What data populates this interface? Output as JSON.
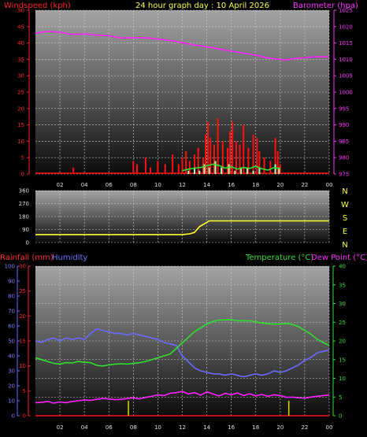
{
  "header": {
    "left_title": "Windspeed (kph)",
    "center_title": "24 hour graph day : 10 April 2026",
    "right_title": "Barometer (hpa)"
  },
  "bottom_header": {
    "rainfall": "Rainfall (mm)",
    "humidity": "Humidity",
    "temperature": "Temperature (°C)",
    "dew_point": "Dew Point (°C)"
  },
  "colors": {
    "red": "#ff1010",
    "magenta": "#ff20ff",
    "yellow": "#ffff30",
    "green": "#30e030",
    "blue": "#6a6aff",
    "lightgreen": "#b0ffb0"
  },
  "chart_data": [
    {
      "type": "line",
      "name": "wind_baro",
      "x_ticks": [
        "02",
        "04",
        "06",
        "08",
        "10",
        "12",
        "14",
        "16",
        "18",
        "20",
        "22",
        "00"
      ],
      "left_axis": {
        "title": "Windspeed (kph)",
        "ylim": [
          0,
          50
        ],
        "ticks": [
          0,
          5,
          10,
          15,
          20,
          25,
          30,
          35,
          40,
          45,
          50
        ]
      },
      "right_axis": {
        "title": "Barometer (hpa)",
        "ylim": [
          975,
          1025
        ],
        "ticks": [
          975,
          980,
          985,
          990,
          995,
          1000,
          1005,
          1010,
          1015,
          1020,
          1025
        ]
      },
      "series": [
        {
          "axis": "right",
          "color": "#ff20ff",
          "x": [
            0,
            1,
            2,
            3,
            4,
            5,
            6,
            7,
            8,
            9,
            10,
            11,
            12,
            13,
            14,
            15,
            16,
            17,
            18,
            19,
            20,
            20.5,
            21,
            22,
            23,
            24
          ],
          "y": [
            1018,
            1018.5,
            1018.3,
            1017.6,
            1017.8,
            1017.4,
            1017.2,
            1016.5,
            1016.6,
            1016.6,
            1016.2,
            1015.8,
            1015.1,
            1014.4,
            1013.8,
            1013.2,
            1012.5,
            1011.9,
            1011.3,
            1010.4,
            1010,
            1009.8,
            1010.2,
            1010.5,
            1010.8,
            1010.8
          ]
        },
        {
          "axis": "left",
          "color": "#ff1010",
          "style": "bars",
          "x": [
            3.1,
            8,
            8.3,
            9,
            9.4,
            10,
            10.6,
            11.2,
            11.7,
            12,
            12.3,
            12.6,
            13,
            13.3,
            13.7,
            13.9,
            14.1,
            14.3,
            14.6,
            14.9,
            15.3,
            15.7,
            15.9,
            16.1,
            16.4,
            16.7,
            17,
            17.4,
            17.8,
            18.1,
            18.3,
            18.7,
            19.2,
            19.6,
            19.8,
            20
          ],
          "y": [
            2,
            4,
            3,
            5,
            2,
            4,
            3,
            6,
            3,
            5,
            7,
            4,
            6,
            8,
            5,
            12,
            16,
            11,
            9,
            17,
            10,
            8,
            13,
            16,
            10,
            9,
            15,
            8,
            12,
            11,
            7,
            5,
            4,
            11,
            7,
            3
          ]
        },
        {
          "axis": "left",
          "color": "#b0ffb0",
          "style": "bars",
          "x": [
            12.5,
            13,
            13.4,
            13.8,
            14.2,
            14.7,
            15.2,
            15.8,
            16.3,
            16.8,
            17.3,
            17.8,
            18.3,
            19.6,
            19.9
          ],
          "y": [
            1,
            2,
            1,
            3,
            2,
            4,
            2,
            3,
            1,
            2,
            2,
            1,
            2,
            3,
            2
          ]
        },
        {
          "axis": "left",
          "color": "#30e030",
          "x": [
            12,
            12.5,
            13,
            13.5,
            14,
            14.5,
            15,
            15.5,
            16,
            16.5,
            17,
            17.5,
            18,
            18.5,
            19,
            19.5,
            20
          ],
          "y": [
            1,
            1.5,
            1.8,
            2,
            2.5,
            3,
            2.6,
            1.8,
            2.2,
            1.5,
            2,
            1.7,
            2.4,
            1.6,
            1.2,
            2,
            1.6
          ]
        }
      ]
    },
    {
      "type": "line",
      "name": "wind_direction",
      "x_ticks": [
        "02",
        "04",
        "06",
        "08",
        "10",
        "12",
        "14",
        "16",
        "18",
        "20",
        "22",
        "00"
      ],
      "left_axis": {
        "ylim": [
          0,
          360
        ],
        "ticks": [
          0,
          90,
          180,
          270,
          360
        ]
      },
      "right_labels": [
        "N",
        "W",
        "S",
        "E",
        "N"
      ],
      "series": [
        {
          "color": "#ffff30",
          "x": [
            0,
            1,
            2,
            3,
            4,
            5,
            6,
            7,
            8,
            9,
            10,
            11,
            12,
            12.6,
            13,
            13.4,
            13.8,
            14.2,
            15,
            16,
            17,
            18,
            19,
            20,
            21,
            22,
            23,
            24
          ],
          "y": [
            55,
            55,
            55,
            55,
            55,
            55,
            55,
            55,
            55,
            55,
            55,
            55,
            55,
            60,
            70,
            110,
            130,
            150,
            150,
            150,
            150,
            150,
            150,
            150,
            150,
            150,
            150,
            150
          ]
        }
      ]
    },
    {
      "type": "line",
      "name": "temp_hum_rain",
      "x_ticks": [
        "02",
        "04",
        "06",
        "08",
        "10",
        "12",
        "14",
        "16",
        "18",
        "20",
        "22",
        "00"
      ],
      "rain_axis": {
        "title": "Rainfall (mm)",
        "ylim": [
          0,
          30
        ],
        "ticks": [
          0,
          5,
          10,
          15,
          20,
          25,
          30
        ]
      },
      "humidity_axis": {
        "title": "Humidity",
        "ylim": [
          0,
          100
        ],
        "ticks": [
          0,
          10,
          20,
          30,
          40,
          50,
          60,
          70,
          80,
          90,
          100
        ]
      },
      "temp_axis": {
        "title": "Temperature (°C)",
        "ylim": [
          0,
          40
        ],
        "ticks": [
          0,
          5,
          10,
          15,
          20,
          25,
          30,
          35,
          40
        ]
      },
      "series": [
        {
          "name": "Humidity",
          "color": "#6a6aff",
          "x": [
            0,
            0.5,
            1,
            1.5,
            2,
            2.5,
            3,
            3.5,
            4,
            4.5,
            5,
            5.5,
            6,
            6.5,
            7,
            7.5,
            8,
            8.5,
            9,
            9.5,
            10,
            10.5,
            11,
            11.5,
            12,
            12.5,
            13,
            13.5,
            14,
            14.5,
            15,
            15.5,
            16,
            16.5,
            17,
            17.5,
            18,
            18.5,
            19,
            19.5,
            20,
            20.5,
            21,
            21.5,
            22,
            22.5,
            23,
            23.5,
            24
          ],
          "y": [
            50,
            49,
            51,
            52,
            50,
            52,
            51,
            52,
            51,
            55,
            58,
            57,
            56,
            55,
            55,
            54,
            55,
            54,
            53,
            52,
            51,
            49,
            48,
            47,
            40,
            36,
            32,
            30,
            29,
            28,
            28,
            27,
            28,
            27,
            26,
            27,
            28,
            27,
            28,
            30,
            29,
            30,
            32,
            34,
            37,
            39,
            42,
            43,
            44
          ]
        },
        {
          "name": "Temperature (°C)",
          "color": "#30e030",
          "x": [
            0,
            0.5,
            1,
            1.5,
            2,
            2.5,
            3,
            3.5,
            4,
            4.5,
            5,
            5.5,
            6,
            6.5,
            7,
            7.5,
            8,
            8.5,
            9,
            9.5,
            10,
            10.5,
            11,
            11.5,
            12,
            12.5,
            13,
            13.5,
            14,
            14.5,
            15,
            15.5,
            16,
            16.5,
            17,
            17.5,
            18,
            18.5,
            19,
            19.5,
            20,
            20.5,
            21,
            21.5,
            22,
            22.5,
            23,
            23.5,
            24
          ],
          "y": [
            15.5,
            15,
            14.5,
            14,
            13.8,
            14.2,
            14.1,
            14.5,
            14.3,
            14.2,
            13.5,
            13.3,
            13.6,
            13.8,
            13.9,
            13.8,
            14,
            14.2,
            14.5,
            15,
            15.5,
            16,
            16.5,
            18,
            19.5,
            21,
            22.5,
            23.5,
            24.5,
            25.2,
            25.6,
            25.6,
            25.7,
            25.4,
            25.4,
            25.4,
            25.1,
            24.8,
            24.6,
            24.5,
            24.5,
            24.7,
            24.4,
            23.8,
            22.8,
            21.8,
            20.5,
            19.6,
            18.8
          ]
        },
        {
          "name": "Dew Point (°C)",
          "color": "#ff20ff",
          "x": [
            0,
            0.5,
            1,
            1.5,
            2,
            2.5,
            3,
            3.5,
            4,
            4.5,
            5,
            5.5,
            6,
            6.5,
            7,
            7.5,
            8,
            8.5,
            9,
            9.5,
            10,
            10.5,
            11,
            11.5,
            12,
            12.5,
            13,
            13.5,
            14,
            14.5,
            15,
            15.5,
            16,
            16.5,
            17,
            17.5,
            18,
            18.5,
            19,
            19.5,
            20,
            20.5,
            21,
            21.5,
            22,
            22.5,
            23,
            23.5,
            24
          ],
          "y": [
            3.5,
            3.6,
            3.8,
            3.4,
            3.7,
            3.5,
            3.8,
            4,
            4.2,
            4.1,
            4.4,
            4.6,
            4.5,
            4.3,
            4.4,
            4.6,
            4.8,
            4.5,
            4.9,
            5.2,
            5.6,
            5.4,
            6,
            6.2,
            6.5,
            5.8,
            6.2,
            5.5,
            6.4,
            5.8,
            5.3,
            6,
            5.6,
            6.1,
            5.4,
            5.9,
            5.3,
            5.7,
            5.2,
            5.6,
            5.4,
            4.9,
            5,
            4.8,
            4.7,
            5,
            5.2,
            5.4,
            5.6
          ]
        },
        {
          "name": "Rainfall (mm)",
          "color": "#ff1010",
          "x": [
            0,
            24
          ],
          "y": [
            0,
            0
          ]
        },
        {
          "name": "Rain events",
          "color": "#d0d000",
          "style": "bars",
          "x": [
            7.6,
            20.7
          ],
          "y": [
            3,
            3
          ]
        }
      ]
    }
  ]
}
